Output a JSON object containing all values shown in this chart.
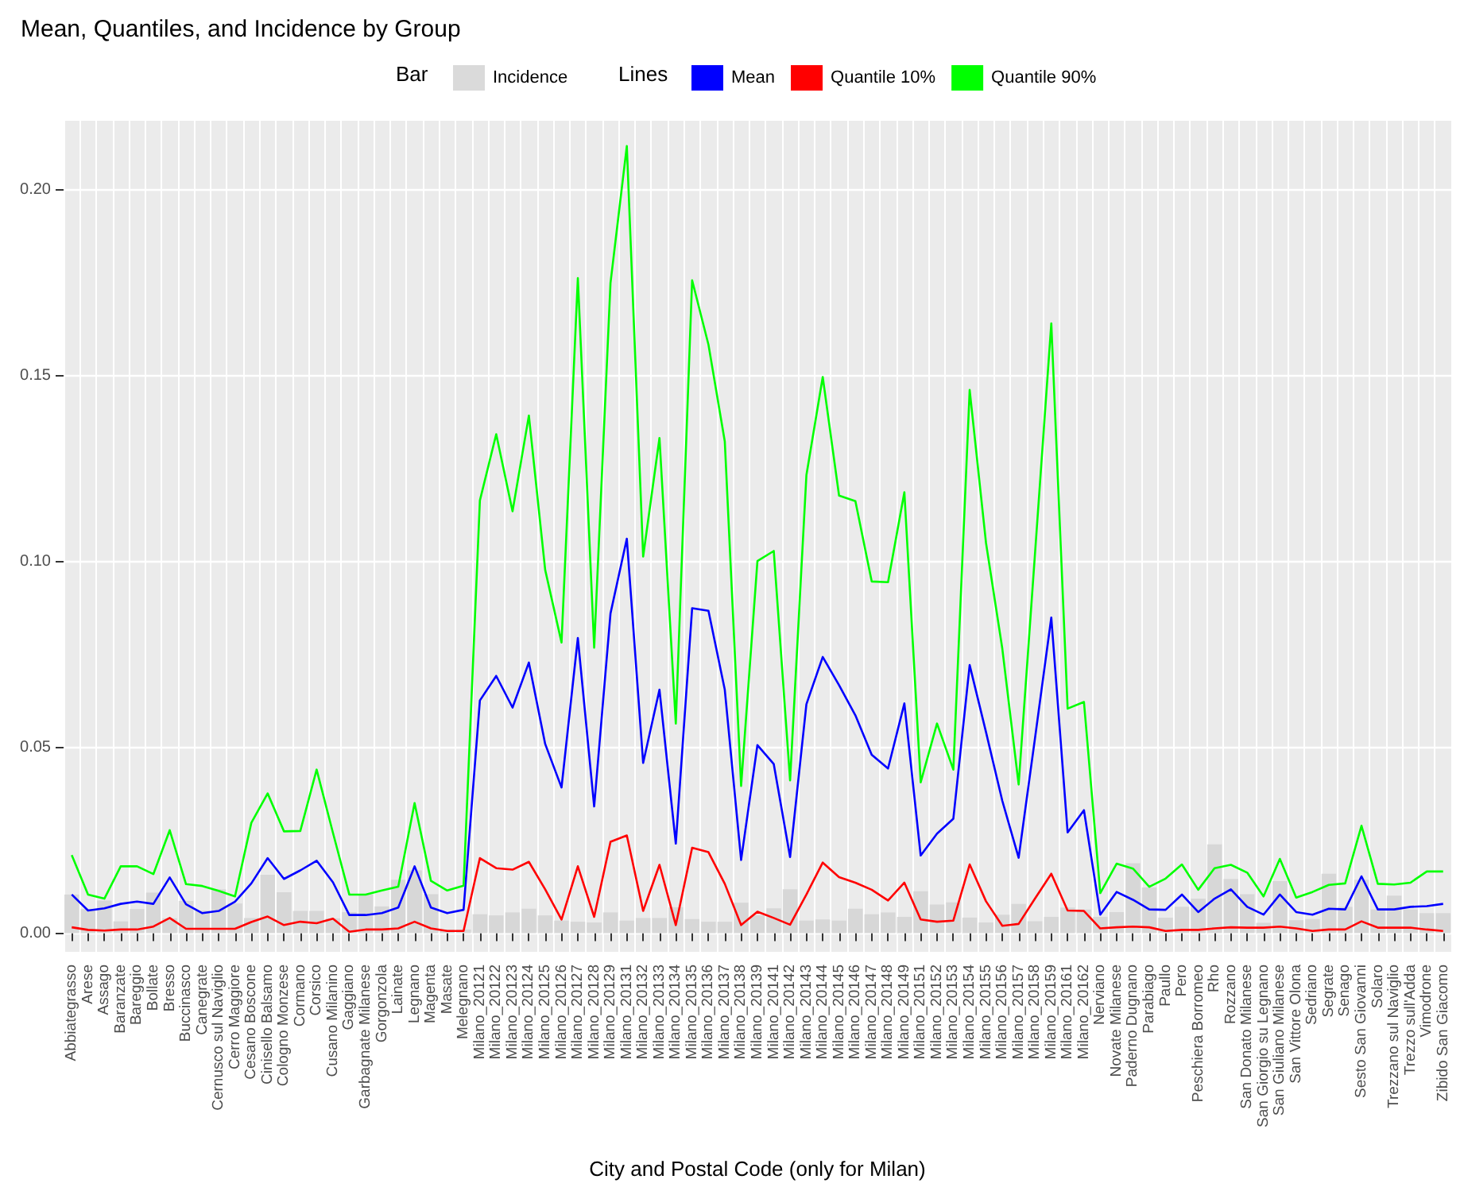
{
  "chart_data": {
    "type": "line",
    "title": "Mean, Quantiles, and Incidence by Group",
    "xlabel": "City and Postal Code (only for Milan)",
    "legend_title": "Lines",
    "annotations": [
      "Bar"
    ],
    "categories": [
      "Abbiategrasso",
      "Arese",
      "Assago",
      "Baranzate",
      "Bareggio",
      "Bollate",
      "Bresso",
      "Buccinasco",
      "Canegrate",
      "Cernusco sul Naviglio",
      "Cerro Maggiore",
      "Cesano Boscone",
      "Cinisello Balsamo",
      "Cologno Monzese",
      "Cormano",
      "Corsico",
      "Cusano Milanino",
      "Gaggiano",
      "Garbagnate Milanese",
      "Gorgonzola",
      "Lainate",
      "Legnano",
      "Magenta",
      "Masate",
      "Melegnano",
      "Milano_20121",
      "Milano_20122",
      "Milano_20123",
      "Milano_20124",
      "Milano_20125",
      "Milano_20126",
      "Milano_20127",
      "Milano_20128",
      "Milano_20129",
      "Milano_20131",
      "Milano_20132",
      "Milano_20133",
      "Milano_20134",
      "Milano_20135",
      "Milano_20136",
      "Milano_20137",
      "Milano_20138",
      "Milano_20139",
      "Milano_20141",
      "Milano_20142",
      "Milano_20143",
      "Milano_20144",
      "Milano_20145",
      "Milano_20146",
      "Milano_20147",
      "Milano_20148",
      "Milano_20149",
      "Milano_20151",
      "Milano_20152",
      "Milano_20153",
      "Milano_20154",
      "Milano_20155",
      "Milano_20156",
      "Milano_20157",
      "Milano_20158",
      "Milano_20159",
      "Milano_20161",
      "Milano_20162",
      "Nerviano",
      "Novate Milanese",
      "Paderno Dugnano",
      "Parabiago",
      "Paullo",
      "Pero",
      "Peschiera Borromeo",
      "Rho",
      "Rozzano",
      "San Donato Milanese",
      "San Giorgio su Legnano",
      "San Giuliano Milanese",
      "San Vittore Olona",
      "Sedriano",
      "Segrate",
      "Senago",
      "Sesto San Giovanni",
      "Solaro",
      "Trezzano sul Naviglio",
      "Trezzo sull'Adda",
      "Vimodrone",
      "Zibido San Giacomo"
    ],
    "series": [
      {
        "name": "Incidence",
        "type": "bar",
        "color": "#d3d3d3",
        "values": [
          0.0104,
          0.0065,
          0.0088,
          0.0032,
          0.0065,
          0.0109,
          0.004,
          0.0087,
          0.0061,
          0.0118,
          0.008,
          0.0041,
          0.0157,
          0.011,
          0.006,
          0.006,
          0.004,
          0.0057,
          0.0104,
          0.0072,
          0.0144,
          0.0169,
          0.0105,
          0.001,
          0.001,
          0.0051,
          0.0048,
          0.0056,
          0.0066,
          0.0048,
          0.0034,
          0.0031,
          0.0029,
          0.0056,
          0.0034,
          0.0041,
          0.0041,
          0.007,
          0.0038,
          0.0031,
          0.0031,
          0.0082,
          0.0048,
          0.0067,
          0.0118,
          0.0034,
          0.0037,
          0.0034,
          0.0066,
          0.0051,
          0.0056,
          0.0044,
          0.0113,
          0.0077,
          0.0083,
          0.0042,
          0.0029,
          0.005,
          0.0079,
          0.0032,
          0.0044,
          0.0069,
          0.0064,
          0.0044,
          0.0057,
          0.0188,
          0.0123,
          0.0042,
          0.0071,
          0.0093,
          0.0239,
          0.0146,
          0.0105,
          0.0028,
          0.014,
          0.0035,
          0.0038,
          0.016,
          0.0071,
          0.0144,
          0.0064,
          0.0101,
          0.0064,
          0.0054,
          0.0054
        ]
      },
      {
        "name": "Mean",
        "color": "#0000ff",
        "values": [
          0.0104,
          0.0061,
          0.0067,
          0.0079,
          0.0085,
          0.0079,
          0.015,
          0.0078,
          0.0054,
          0.006,
          0.0085,
          0.0134,
          0.0202,
          0.0146,
          0.0169,
          0.0195,
          0.0137,
          0.0049,
          0.0049,
          0.0054,
          0.0069,
          0.018,
          0.0069,
          0.0054,
          0.0063,
          0.0626,
          0.0692,
          0.0607,
          0.0728,
          0.0509,
          0.0392,
          0.0794,
          0.0341,
          0.086,
          0.1061,
          0.0458,
          0.0655,
          0.0241,
          0.0874,
          0.0867,
          0.0655,
          0.0197,
          0.0506,
          0.0455,
          0.0205,
          0.0616,
          0.0743,
          0.0667,
          0.0586,
          0.048,
          0.0443,
          0.0618,
          0.0209,
          0.0268,
          0.0308,
          0.0721,
          0.0541,
          0.0356,
          0.0203,
          0.0524,
          0.0849,
          0.0271,
          0.0331,
          0.005,
          0.0111,
          0.009,
          0.0064,
          0.0063,
          0.0104,
          0.0057,
          0.0093,
          0.0118,
          0.0071,
          0.005,
          0.0104,
          0.0057,
          0.005,
          0.0066,
          0.0064,
          0.0153,
          0.0064,
          0.0064,
          0.0071,
          0.0073,
          0.0079
        ]
      },
      {
        "name": "Quantile 10%",
        "color": "#ff0000",
        "values": [
          0.0016,
          0.0009,
          0.0007,
          0.001,
          0.001,
          0.0018,
          0.0041,
          0.0012,
          0.0012,
          0.0012,
          0.0012,
          0.003,
          0.0045,
          0.0022,
          0.0031,
          0.0027,
          0.0039,
          0.0004,
          0.001,
          0.001,
          0.0013,
          0.0031,
          0.0013,
          0.0006,
          0.0006,
          0.0202,
          0.0175,
          0.0171,
          0.0192,
          0.0118,
          0.0037,
          0.018,
          0.0044,
          0.0246,
          0.0263,
          0.006,
          0.0184,
          0.0022,
          0.023,
          0.0218,
          0.0133,
          0.0022,
          0.0058,
          0.0041,
          0.0023,
          0.0104,
          0.019,
          0.0151,
          0.0136,
          0.0117,
          0.0088,
          0.0136,
          0.0037,
          0.0031,
          0.0034,
          0.0185,
          0.0086,
          0.002,
          0.0025,
          0.0093,
          0.016,
          0.0061,
          0.006,
          0.0013,
          0.0016,
          0.0018,
          0.0016,
          0.0006,
          0.0009,
          0.0009,
          0.0013,
          0.0016,
          0.0015,
          0.0015,
          0.0018,
          0.0013,
          0.0006,
          0.001,
          0.001,
          0.0032,
          0.0015,
          0.0015,
          0.0015,
          0.001,
          0.0006
        ]
      },
      {
        "name": "Quantile 90%",
        "color": "#00ff00",
        "values": [
          0.021,
          0.0104,
          0.0093,
          0.018,
          0.018,
          0.0159,
          0.0277,
          0.0132,
          0.0127,
          0.0114,
          0.0099,
          0.0297,
          0.0376,
          0.0274,
          0.0275,
          0.044,
          0.027,
          0.0104,
          0.0104,
          0.0115,
          0.0125,
          0.035,
          0.0141,
          0.0115,
          0.0128,
          0.1164,
          0.1342,
          0.1135,
          0.1392,
          0.0977,
          0.0782,
          0.1762,
          0.0768,
          0.1749,
          0.2117,
          0.1013,
          0.1332,
          0.0564,
          0.1756,
          0.1583,
          0.1323,
          0.0396,
          0.1001,
          0.1028,
          0.0411,
          0.1232,
          0.1496,
          0.1177,
          0.1162,
          0.0946,
          0.0944,
          0.1186,
          0.0406,
          0.0564,
          0.044,
          0.1461,
          0.105,
          0.0765,
          0.04,
          0.102,
          0.164,
          0.0604,
          0.0622,
          0.0108,
          0.0187,
          0.0174,
          0.0125,
          0.0147,
          0.0185,
          0.0117,
          0.0175,
          0.0184,
          0.0163,
          0.0099,
          0.02,
          0.0096,
          0.0111,
          0.013,
          0.0134,
          0.0289,
          0.0133,
          0.0131,
          0.0136,
          0.0166,
          0.0166
        ]
      }
    ],
    "ylim": [
      -0.005,
      0.2185
    ],
    "yticks": [
      {
        "value": 0,
        "label": "0.00"
      },
      {
        "value": 0.05,
        "label": "0.05"
      },
      {
        "value": 0.1,
        "label": "0.10"
      },
      {
        "value": 0.15,
        "label": "0.15"
      },
      {
        "value": 0.2,
        "label": "0.20"
      }
    ],
    "grid": true,
    "legend": "top",
    "marker": "none",
    "line_style": "solid"
  }
}
